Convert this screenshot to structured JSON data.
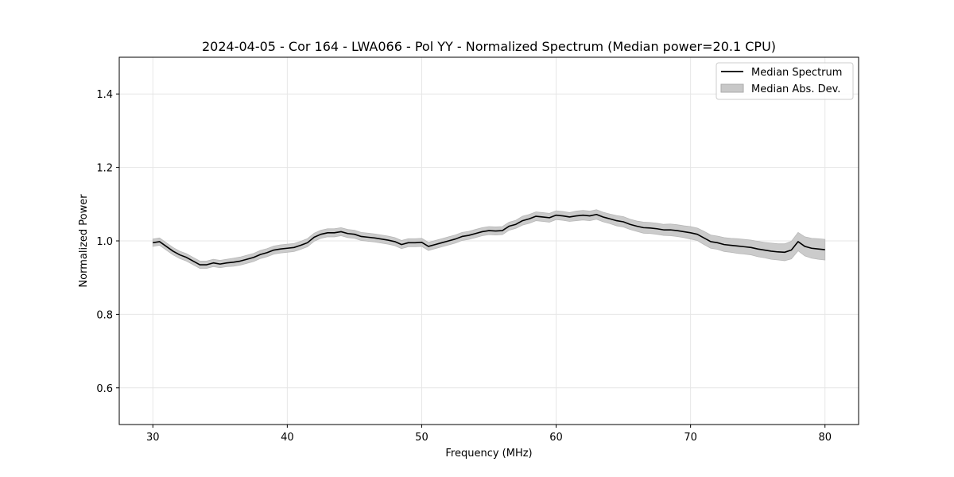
{
  "chart_data": {
    "type": "line",
    "title": "2024-04-05 - Cor 164 - LWA066 - Pol YY - Normalized Spectrum (Median power=20.1 CPU)",
    "xlabel": "Frequency (MHz)",
    "ylabel": "Normalized Power",
    "xlim": [
      27.5,
      82.5
    ],
    "ylim": [
      0.5,
      1.5
    ],
    "xticks": [
      30,
      40,
      50,
      60,
      70,
      80
    ],
    "xtick_labels": [
      "30",
      "40",
      "50",
      "60",
      "70",
      "80"
    ],
    "yticks": [
      0.6,
      0.8,
      1.0,
      1.2,
      1.4
    ],
    "ytick_labels": [
      "0.6",
      "0.8",
      "1.0",
      "1.2",
      "1.4"
    ],
    "grid": true,
    "legend_position": "top-right",
    "series": [
      {
        "name": "Median Spectrum",
        "color": "#000000",
        "x": [
          30,
          30.5,
          31,
          31.5,
          32,
          32.5,
          33,
          33.5,
          34,
          34.5,
          35,
          35.5,
          36,
          36.5,
          37,
          37.5,
          38,
          38.5,
          39,
          39.5,
          40,
          40.5,
          41,
          41.5,
          42,
          42.5,
          43,
          43.5,
          44,
          44.5,
          45,
          45.5,
          46,
          46.5,
          47,
          47.5,
          48,
          48.5,
          49,
          49.5,
          50,
          50.5,
          51,
          51.5,
          52,
          52.5,
          53,
          53.5,
          54,
          54.5,
          55,
          55.5,
          56,
          56.5,
          57,
          57.5,
          58,
          58.5,
          59,
          59.5,
          60,
          60.5,
          61,
          61.5,
          62,
          62.5,
          63,
          63.5,
          64,
          64.5,
          65,
          65.5,
          66,
          66.5,
          67,
          67.5,
          68,
          68.5,
          69,
          69.5,
          70,
          70.5,
          71,
          71.5,
          72,
          72.5,
          73,
          73.5,
          74,
          74.5,
          75,
          75.5,
          76,
          76.5,
          77,
          77.5,
          78,
          78.5,
          79,
          79.5,
          80
        ],
        "values": [
          0.995,
          0.998,
          0.985,
          0.972,
          0.962,
          0.955,
          0.945,
          0.935,
          0.935,
          0.94,
          0.937,
          0.94,
          0.942,
          0.945,
          0.95,
          0.955,
          0.963,
          0.968,
          0.975,
          0.978,
          0.98,
          0.982,
          0.988,
          0.995,
          1.01,
          1.018,
          1.022,
          1.022,
          1.025,
          1.02,
          1.018,
          1.012,
          1.01,
          1.008,
          1.005,
          1.002,
          0.998,
          0.99,
          0.995,
          0.995,
          0.996,
          0.985,
          0.99,
          0.995,
          1.0,
          1.005,
          1.012,
          1.015,
          1.02,
          1.025,
          1.028,
          1.027,
          1.028,
          1.04,
          1.045,
          1.055,
          1.06,
          1.067,
          1.065,
          1.063,
          1.07,
          1.068,
          1.065,
          1.068,
          1.07,
          1.068,
          1.072,
          1.065,
          1.06,
          1.055,
          1.052,
          1.045,
          1.04,
          1.036,
          1.035,
          1.033,
          1.03,
          1.03,
          1.028,
          1.025,
          1.022,
          1.018,
          1.008,
          0.998,
          0.995,
          0.99,
          0.988,
          0.986,
          0.984,
          0.982,
          0.978,
          0.975,
          0.972,
          0.97,
          0.969,
          0.975,
          0.998,
          0.985,
          0.98,
          0.978,
          0.976
        ],
        "mad": [
          0.01,
          0.01,
          0.01,
          0.01,
          0.01,
          0.01,
          0.01,
          0.01,
          0.01,
          0.01,
          0.01,
          0.01,
          0.011,
          0.011,
          0.011,
          0.011,
          0.011,
          0.011,
          0.011,
          0.011,
          0.011,
          0.011,
          0.011,
          0.011,
          0.011,
          0.011,
          0.011,
          0.011,
          0.011,
          0.011,
          0.011,
          0.011,
          0.011,
          0.011,
          0.011,
          0.011,
          0.011,
          0.011,
          0.011,
          0.011,
          0.011,
          0.011,
          0.011,
          0.011,
          0.011,
          0.011,
          0.011,
          0.011,
          0.011,
          0.011,
          0.011,
          0.011,
          0.011,
          0.011,
          0.011,
          0.012,
          0.012,
          0.012,
          0.012,
          0.012,
          0.012,
          0.012,
          0.012,
          0.013,
          0.013,
          0.013,
          0.013,
          0.013,
          0.013,
          0.014,
          0.014,
          0.014,
          0.014,
          0.015,
          0.015,
          0.015,
          0.015,
          0.016,
          0.016,
          0.016,
          0.017,
          0.017,
          0.018,
          0.018,
          0.018,
          0.019,
          0.019,
          0.02,
          0.02,
          0.02,
          0.021,
          0.021,
          0.022,
          0.022,
          0.023,
          0.024,
          0.025,
          0.026,
          0.027,
          0.028,
          0.028
        ]
      }
    ],
    "legend": [
      {
        "label": "Median Spectrum",
        "kind": "line",
        "color": "#000000"
      },
      {
        "label": "Median Abs. Dev.",
        "kind": "patch",
        "color": "#c8c8c8"
      }
    ]
  }
}
